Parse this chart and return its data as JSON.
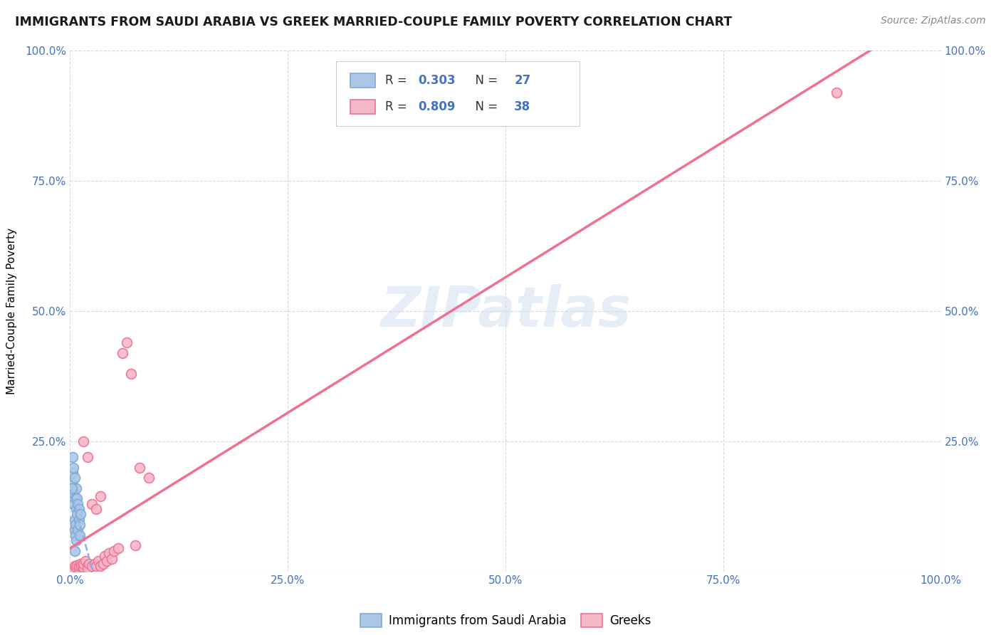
{
  "title": "IMMIGRANTS FROM SAUDI ARABIA VS GREEK MARRIED-COUPLE FAMILY POVERTY CORRELATION CHART",
  "source": "Source: ZipAtlas.com",
  "ylabel": "Married-Couple Family Poverty",
  "watermark": "ZIPatlas",
  "legend_label1": "Immigrants from Saudi Arabia",
  "legend_label2": "Greeks",
  "r1": 0.303,
  "n1": 27,
  "r2": 0.809,
  "n2": 38,
  "color_saudi": "#adc6e8",
  "color_greek": "#f4b8c8",
  "color_saudi_edge": "#7aaad4",
  "color_greek_edge": "#f07090",
  "color_text_blue": "#4472c4",
  "color_pink_line": "#f07090",
  "color_blue_dashed": "#8ab4d8",
  "background": "#ffffff",
  "grid_color": "#d8d8d8",
  "xlim": [
    0,
    1
  ],
  "ylim": [
    0,
    1
  ],
  "xticks": [
    0,
    0.25,
    0.5,
    0.75,
    1.0
  ],
  "yticks": [
    0,
    0.25,
    0.5,
    0.75,
    1.0
  ],
  "xtick_labels": [
    "0.0%",
    "25.0%",
    "50.0%",
    "75.0%",
    "100.0%"
  ],
  "ytick_labels": [
    "",
    "25.0%",
    "50.0%",
    "75.0%",
    "100.0%"
  ],
  "saudi_x": [
    0.002,
    0.003,
    0.003,
    0.004,
    0.004,
    0.005,
    0.005,
    0.005,
    0.006,
    0.006,
    0.006,
    0.007,
    0.007,
    0.007,
    0.008,
    0.008,
    0.009,
    0.009,
    0.01,
    0.01,
    0.011,
    0.011,
    0.012,
    0.003,
    0.004,
    0.005,
    0.002
  ],
  "saudi_y": [
    0.17,
    0.005,
    0.19,
    0.13,
    0.15,
    0.18,
    0.1,
    0.08,
    0.14,
    0.09,
    0.07,
    0.12,
    0.16,
    0.06,
    0.11,
    0.14,
    0.08,
    0.13,
    0.1,
    0.12,
    0.07,
    0.09,
    0.11,
    0.22,
    0.2,
    0.04,
    0.16
  ],
  "greek_x": [
    0.003,
    0.005,
    0.007,
    0.008,
    0.01,
    0.01,
    0.012,
    0.013,
    0.015,
    0.015,
    0.015,
    0.018,
    0.02,
    0.02,
    0.02,
    0.022,
    0.025,
    0.025,
    0.028,
    0.03,
    0.03,
    0.032,
    0.035,
    0.035,
    0.038,
    0.04,
    0.042,
    0.045,
    0.048,
    0.05,
    0.055,
    0.06,
    0.065,
    0.07,
    0.075,
    0.08,
    0.09,
    0.88
  ],
  "greek_y": [
    0.005,
    0.01,
    0.008,
    0.012,
    0.005,
    0.01,
    0.015,
    0.01,
    0.008,
    0.015,
    0.25,
    0.02,
    0.01,
    0.005,
    0.22,
    0.015,
    0.01,
    0.13,
    0.015,
    0.01,
    0.12,
    0.02,
    0.01,
    0.145,
    0.015,
    0.03,
    0.02,
    0.035,
    0.025,
    0.04,
    0.045,
    0.42,
    0.44,
    0.38,
    0.05,
    0.2,
    0.18,
    0.92
  ],
  "marker_size": 100
}
